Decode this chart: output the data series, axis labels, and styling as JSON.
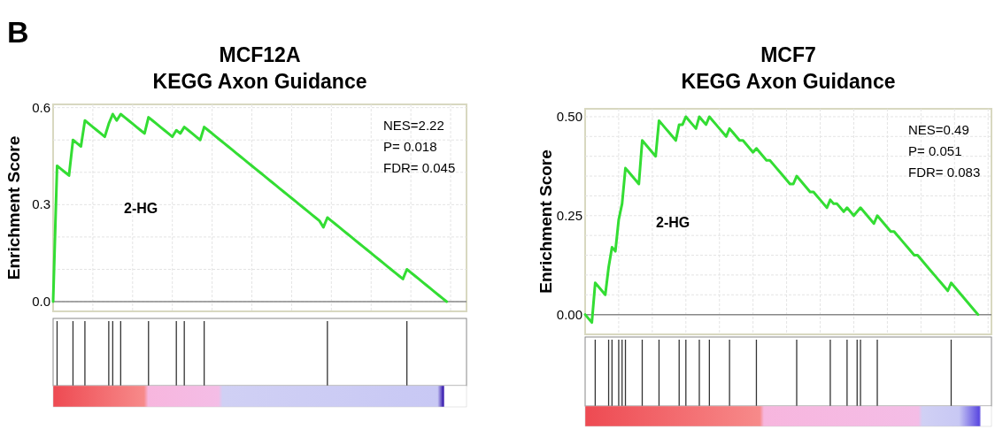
{
  "chart_data": [
    {
      "type": "line",
      "title": "MCF12A",
      "subtitle": "KEGG Axon Guidance",
      "ylabel": "Enrichment Score",
      "annotations": [
        "B",
        "NES=2.22",
        "P= 0.018",
        "FDR= 0.045",
        "2-HG"
      ],
      "categories": [
        null,
        null,
        null,
        null,
        null,
        null,
        null,
        null,
        null,
        null,
        null,
        null,
        null,
        null,
        null,
        null,
        null,
        null,
        null,
        null,
        null,
        null,
        null,
        null,
        null,
        null,
        null,
        null,
        null,
        null,
        null,
        null,
        null,
        null,
        null,
        null,
        null,
        null,
        null,
        null,
        null,
        null,
        null,
        null,
        null,
        null,
        null,
        null,
        null,
        null,
        null,
        null,
        null,
        null,
        null,
        null,
        null,
        null,
        null,
        null,
        null,
        null,
        null,
        null,
        null,
        null,
        null,
        null,
        null,
        null,
        null,
        null,
        null,
        null,
        null,
        null,
        null,
        null,
        null,
        null,
        null,
        null,
        null,
        null,
        null,
        null,
        null,
        null,
        null,
        null,
        null,
        null,
        null,
        null,
        null,
        null,
        null,
        null,
        null,
        null,
        null,
        null,
        null,
        null,
        null
      ],
      "series": [
        {
          "color": "#33dd33",
          "values": [
            0,
            0.42,
            0.41,
            0.4,
            0.39,
            0.5,
            0.49,
            0.48,
            0.56,
            0.55,
            0.54,
            0.53,
            0.52,
            0.51,
            0.55,
            0.58,
            0.56,
            0.58,
            0.57,
            0.56,
            0.55,
            0.54,
            0.53,
            0.52,
            0.57,
            0.56,
            0.55,
            0.54,
            0.53,
            0.52,
            0.51,
            0.53,
            0.52,
            0.54,
            0.53,
            0.52,
            0.51,
            0.5,
            0.54,
            0.53,
            0.52,
            0.51,
            0.5,
            0.49,
            0.48,
            0.47,
            0.46,
            0.45,
            0.44,
            0.43,
            0.42,
            0.41,
            0.4,
            0.39,
            0.38,
            0.37,
            0.36,
            0.35,
            0.34,
            0.33,
            0.32,
            0.31,
            0.3,
            0.29,
            0.28,
            0.27,
            0.26,
            0.25,
            0.23,
            0.26,
            0.25,
            0.24,
            0.23,
            0.22,
            0.21,
            0.2,
            0.19,
            0.18,
            0.17,
            0.16,
            0.15,
            0.14,
            0.13,
            0.12,
            0.11,
            0.1,
            0.09,
            0.08,
            0.07,
            0.1,
            0.09,
            0.08,
            0.07,
            0.06,
            0.05,
            0.04,
            0.03,
            0.02,
            0.01,
            0,
            null,
            null,
            null,
            null,
            null
          ]
        }
      ],
      "ylim": [
        -0.03,
        0.61
      ],
      "yticks": [
        {
          "value": 0,
          "label": "0.0"
        },
        {
          "value": 0.1,
          "label": null
        },
        {
          "value": 0.2,
          "label": null
        },
        {
          "value": 0.3,
          "label": "0.3"
        },
        {
          "value": 0.4,
          "label": null
        },
        {
          "value": 0.5,
          "label": null
        },
        {
          "value": 0.6,
          "label": "0.6"
        }
      ],
      "grid": true,
      "line_style": "solid",
      "marker": "none"
    },
    {
      "type": "line",
      "title": "MCF7",
      "subtitle": "KEGG Axon Guidance",
      "ylabel": "Enrichment Score",
      "annotations": [
        "NES=0.49",
        "P= 0.051",
        "FDR= 0.083",
        "2-HG"
      ],
      "categories": [
        null,
        null,
        null,
        null,
        null,
        null,
        null,
        null,
        null,
        null,
        null,
        null,
        null,
        null,
        null,
        null,
        null,
        null,
        null,
        null,
        null,
        null,
        null,
        null,
        null,
        null,
        null,
        null,
        null,
        null,
        null,
        null,
        null,
        null,
        null,
        null,
        null,
        null,
        null,
        null,
        null,
        null,
        null,
        null,
        null,
        null,
        null,
        null,
        null,
        null,
        null,
        null,
        null,
        null,
        null,
        null,
        null,
        null,
        null,
        null,
        null,
        null,
        null,
        null,
        null,
        null,
        null,
        null,
        null,
        null,
        null,
        null,
        null,
        null,
        null,
        null,
        null,
        null,
        null,
        null,
        null,
        null,
        null,
        null,
        null,
        null,
        null,
        null,
        null,
        null,
        null,
        null,
        null,
        null,
        null,
        null,
        null,
        null,
        null,
        null,
        null,
        null,
        null,
        null,
        null,
        null,
        null,
        null,
        null,
        null,
        null,
        null,
        null,
        null,
        null,
        null,
        null,
        null,
        null,
        null,
        null,
        null
      ],
      "series": [
        {
          "color": "#33dd33",
          "values": [
            0,
            -0.01,
            -0.02,
            0.08,
            0.07,
            0.06,
            0.05,
            0.12,
            0.17,
            0.16,
            0.24,
            0.28,
            0.37,
            0.36,
            0.35,
            0.34,
            0.33,
            0.44,
            0.43,
            0.42,
            0.41,
            0.4,
            0.49,
            0.48,
            0.47,
            0.46,
            0.45,
            0.44,
            0.48,
            0.48,
            0.5,
            0.49,
            0.48,
            0.47,
            0.5,
            0.49,
            0.48,
            0.5,
            0.49,
            0.48,
            0.47,
            0.46,
            0.45,
            0.47,
            0.46,
            0.45,
            0.44,
            0.44,
            0.43,
            0.42,
            0.41,
            0.42,
            0.41,
            0.4,
            0.39,
            0.39,
            0.38,
            0.37,
            0.36,
            0.35,
            0.34,
            0.33,
            0.33,
            0.35,
            0.34,
            0.33,
            0.32,
            0.31,
            0.31,
            0.3,
            0.29,
            0.28,
            0.27,
            0.29,
            0.28,
            0.28,
            0.27,
            0.26,
            0.27,
            0.26,
            0.25,
            0.26,
            0.27,
            0.26,
            0.25,
            0.24,
            0.23,
            0.25,
            0.24,
            0.23,
            0.22,
            0.21,
            0.21,
            0.2,
            0.19,
            0.18,
            0.17,
            0.16,
            0.15,
            0.15,
            0.14,
            0.13,
            0.12,
            0.11,
            0.1,
            0.09,
            0.08,
            0.07,
            0.06,
            0.08,
            0.07,
            0.06,
            0.05,
            0.04,
            0.03,
            0.02,
            0.01,
            0,
            null,
            null,
            null,
            null
          ]
        }
      ],
      "ylim": [
        -0.05,
        0.52
      ],
      "yticks": [
        {
          "value": 0,
          "label": "0.00"
        },
        {
          "value": 0.05,
          "label": null
        },
        {
          "value": 0.1,
          "label": null
        },
        {
          "value": 0.15,
          "label": null
        },
        {
          "value": 0.2,
          "label": null
        },
        {
          "value": 0.25,
          "label": "0.25"
        },
        {
          "value": 0.3,
          "label": null
        },
        {
          "value": 0.35,
          "label": null
        },
        {
          "value": 0.4,
          "label": null
        },
        {
          "value": 0.45,
          "label": null
        },
        {
          "value": 0.5,
          "label": "0.50"
        }
      ],
      "grid": true,
      "line_style": "solid",
      "marker": "none"
    }
  ]
}
